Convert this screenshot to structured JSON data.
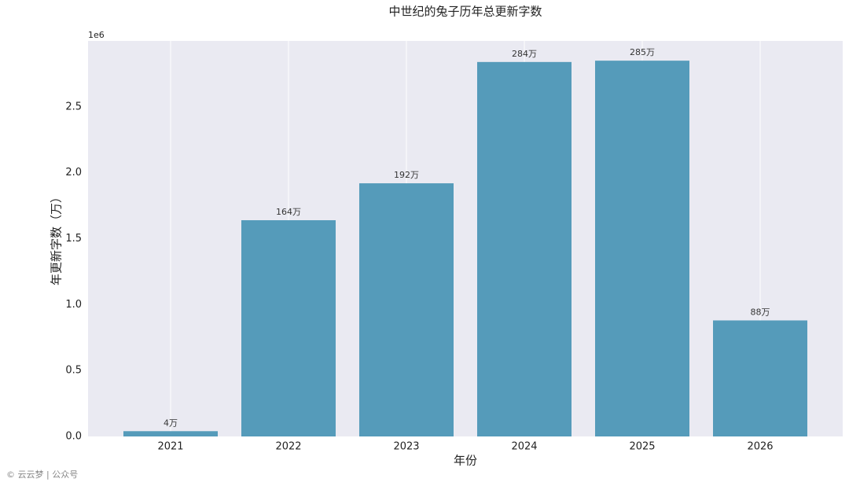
{
  "chart_data": {
    "type": "bar",
    "title": "中世纪的兔子历年总更新字数",
    "x_label": "年份",
    "y_label": "年更新字数（万）",
    "y_offset_label": "1e6",
    "categories": [
      "2021",
      "2022",
      "2023",
      "2024",
      "2025",
      "2026"
    ],
    "values": [
      40000,
      1640000,
      1920000,
      2840000,
      2850000,
      880000
    ],
    "value_labels": [
      "4万",
      "164万",
      "192万",
      "284万",
      "285万",
      "88万"
    ],
    "color": "#559bba",
    "ylim": [
      0,
      3000000
    ],
    "yticks": [
      {
        "value": 0,
        "label": "0.0"
      },
      {
        "value": 500000,
        "label": "0.5"
      },
      {
        "value": 1000000,
        "label": "1.0"
      },
      {
        "value": 1500000,
        "label": "1.5"
      },
      {
        "value": 2000000,
        "label": "2.0"
      },
      {
        "value": 2500000,
        "label": "2.5"
      }
    ],
    "grid": "x",
    "footer": "© 云云梦 | 公众号"
  }
}
